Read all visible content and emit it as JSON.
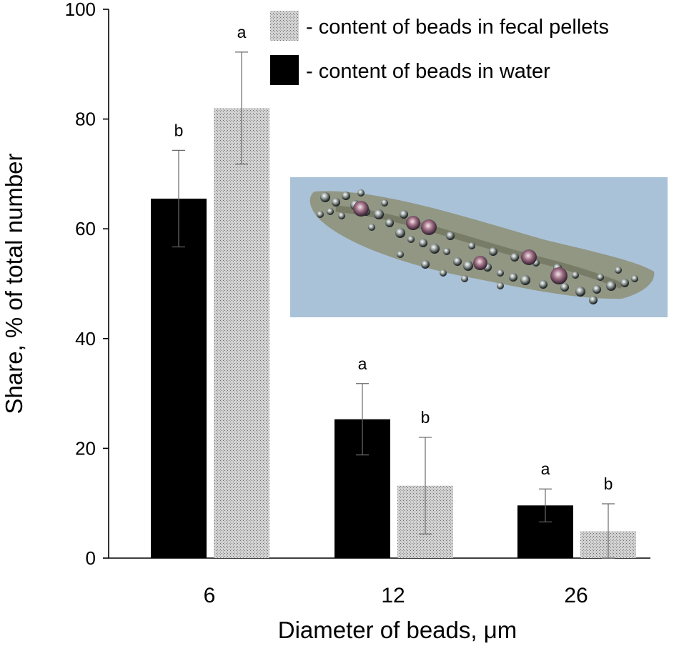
{
  "chart_data": {
    "type": "bar",
    "xlabel": "Diameter of beads, μm",
    "ylabel": "Share, % of total number",
    "ylim": [
      0,
      100
    ],
    "yticks": [
      0,
      20,
      40,
      60,
      80,
      100
    ],
    "categories": [
      "6",
      "12",
      "26"
    ],
    "grid": false,
    "legend_position": "top-right",
    "series": [
      {
        "name": "- content of beads in water",
        "color": "#000000",
        "pattern": "solid",
        "values": [
          65.5,
          25.3,
          9.6
        ],
        "error": [
          8.8,
          6.5,
          3.0
        ],
        "letters": [
          "b",
          "a",
          "a"
        ]
      },
      {
        "name": "- content of beads in fecal pellets",
        "color": "#b8b8b8",
        "pattern": "stipple",
        "values": [
          82.0,
          13.2,
          4.9
        ],
        "error": [
          10.2,
          8.8,
          5.0
        ],
        "letters": [
          "a",
          "b",
          "b"
        ]
      }
    ]
  },
  "inset": {
    "icon": "micrograph-image",
    "background_color": "#aac2d8"
  }
}
